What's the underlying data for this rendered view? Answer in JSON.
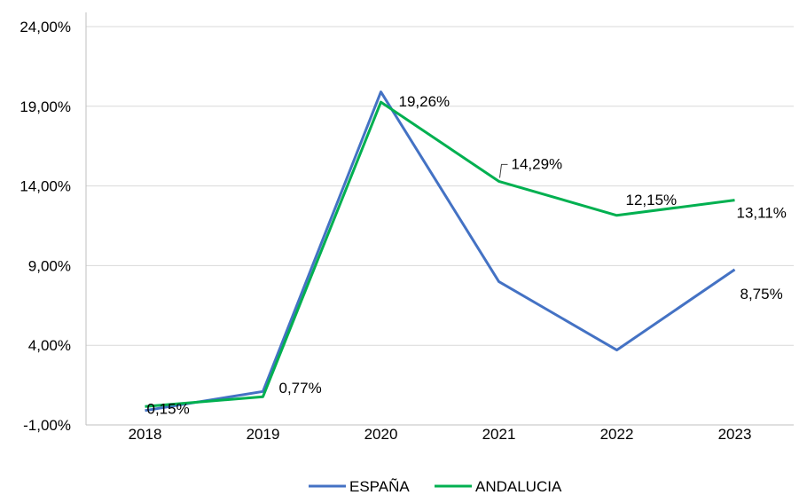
{
  "chart_data": {
    "type": "line",
    "title": "",
    "xlabel": "",
    "ylabel": "",
    "categories": [
      "2018",
      "2019",
      "2020",
      "2021",
      "2022",
      "2023"
    ],
    "ylim": [
      -1,
      24
    ],
    "yticks": [
      -1,
      4,
      9,
      14,
      19,
      24
    ],
    "ytick_labels": [
      "-1,00%",
      "4,00%",
      "9,00%",
      "14,00%",
      "19,00%",
      "24,00%"
    ],
    "grid": "horizontal",
    "legend_position": "bottom",
    "series": [
      {
        "name": "ESPAÑA",
        "color": "#4472c4",
        "values": [
          -0.1,
          1.1,
          19.9,
          8.0,
          3.7,
          8.75
        ],
        "data_labels": [
          null,
          null,
          null,
          null,
          null,
          "8,75%"
        ]
      },
      {
        "name": "ANDALUCIA",
        "color": "#00b050",
        "values": [
          0.15,
          0.77,
          19.26,
          14.29,
          12.15,
          13.11
        ],
        "data_labels": [
          "0,15%",
          "0,77%",
          "19,26%",
          "14,29%",
          "12,15%",
          "13,11%"
        ]
      }
    ]
  }
}
